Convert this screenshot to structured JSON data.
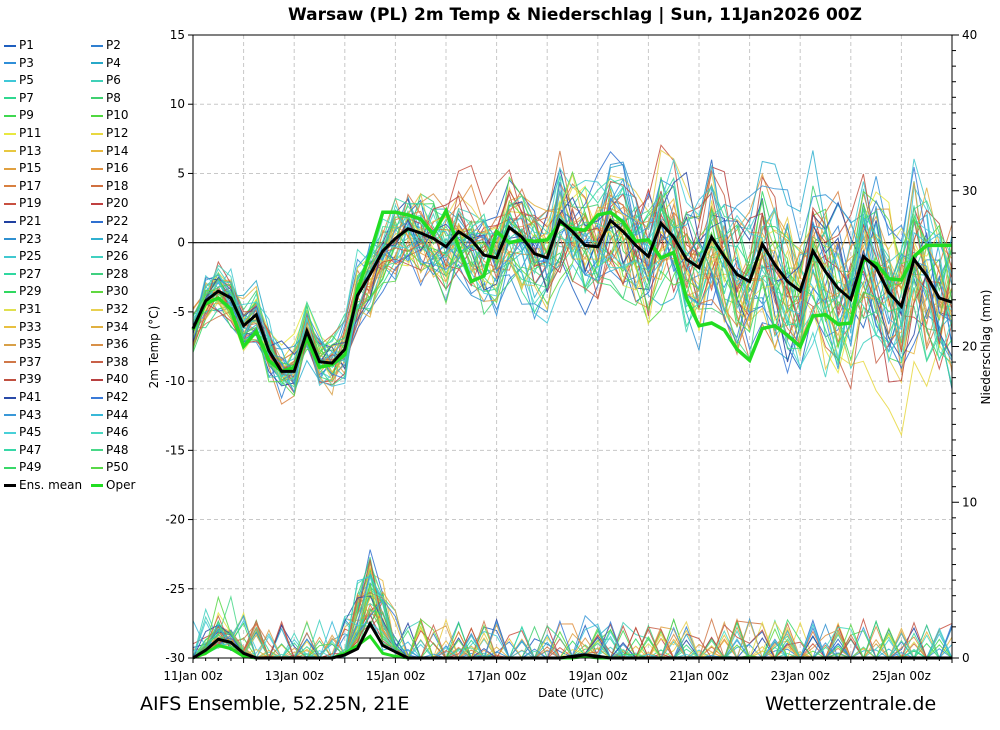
{
  "chart_data": {
    "type": "line",
    "title": "Warsaw  (PL)  2m Temp & Niederschlag | Sun, 11Jan2026 00Z",
    "xlabel": "Date (UTC)",
    "ylabel": "2m Temp (°C)",
    "y2label": "Niederschlag (mm)",
    "ylim": [
      -30,
      15
    ],
    "y2lim": [
      0,
      40
    ],
    "yticks": [
      15,
      10,
      5,
      0,
      -5,
      -10,
      -15,
      -20,
      -25,
      -30
    ],
    "y2ticks": [
      40,
      30,
      20,
      10,
      0
    ],
    "xticks": [
      "11Jan 00z",
      "13Jan 00z",
      "15Jan 00z",
      "17Jan 00z",
      "19Jan 00z",
      "21Jan 00z",
      "23Jan 00z",
      "25Jan 00z"
    ],
    "x_range_hours": [
      0,
      360
    ],
    "step_hours": 6,
    "grid": true,
    "legend_position": "left",
    "legend": [
      "P1",
      "P2",
      "P3",
      "P4",
      "P5",
      "P6",
      "P7",
      "P8",
      "P9",
      "P10",
      "P11",
      "P12",
      "P13",
      "P14",
      "P15",
      "P16",
      "P17",
      "P18",
      "P19",
      "P20",
      "P21",
      "P22",
      "P23",
      "P24",
      "P25",
      "P26",
      "P27",
      "P28",
      "P29",
      "P30",
      "P31",
      "P32",
      "P33",
      "P34",
      "P35",
      "P36",
      "P37",
      "P38",
      "P39",
      "P40",
      "P41",
      "P42",
      "P43",
      "P44",
      "P45",
      "P46",
      "P47",
      "P48",
      "P49",
      "P50",
      "Ens. mean",
      "Oper"
    ],
    "legend_colors": [
      "#1f5fbf",
      "#2f7fd0",
      "#2f8fd8",
      "#27a8c8",
      "#3fc8d8",
      "#3fd0b8",
      "#2fd890",
      "#3fd070",
      "#3fd850",
      "#50d840",
      "#e8e840",
      "#e8d840",
      "#e8c840",
      "#e8b840",
      "#e0a040",
      "#e09040",
      "#d88040",
      "#d07040",
      "#c85040",
      "#c04040",
      "#2040a0",
      "#2f70d0",
      "#2f90d0",
      "#30b0d0",
      "#40c8d0",
      "#40d0c0",
      "#30d8a0",
      "#40d080",
      "#30d860",
      "#60d840",
      "#e0e050",
      "#e8d050",
      "#e8c040",
      "#e0b040",
      "#d8a048",
      "#d89048",
      "#d07848",
      "#c86048",
      "#c05040",
      "#b84040",
      "#2a4aa8",
      "#3a7ad8",
      "#3a98d8",
      "#38b8d8",
      "#48d0d8",
      "#48d8c0",
      "#38d8a8",
      "#48d888",
      "#38d868",
      "#58d848",
      "#000000",
      "#22dd22"
    ],
    "ens_mean": [
      -6.2,
      -4.2,
      -3.5,
      -4.0,
      -6.0,
      -5.2,
      -7.8,
      -9.3,
      -9.3,
      -6.4,
      -8.6,
      -8.7,
      -7.7,
      -3.8,
      -2.3,
      -0.6,
      0.3,
      1.0,
      0.7,
      0.3,
      -0.3,
      0.8,
      0.2,
      -0.9,
      -1.1,
      1.1,
      0.4,
      -0.8,
      -1.1,
      1.6,
      0.8,
      -0.2,
      -0.3,
      1.6,
      0.8,
      -0.2,
      -1.0,
      1.4,
      0.4,
      -1.2,
      -1.8,
      0.4,
      -1.0,
      -2.3,
      -2.8,
      -0.1,
      -1.6,
      -2.8,
      -3.5,
      -0.6,
      -2.1,
      -3.3,
      -4.1,
      -1.0,
      -1.8,
      -3.6,
      -4.6,
      -1.2,
      -2.4,
      -4.0,
      -4.3
    ],
    "oper": [
      -6.3,
      -4.4,
      -4.0,
      -4.8,
      -7.5,
      -6.4,
      -8.5,
      -9.3,
      -9.0,
      -6.9,
      -9.0,
      -8.8,
      -8.1,
      -3.4,
      -0.8,
      2.2,
      2.2,
      2.0,
      1.7,
      0.6,
      2.3,
      -0.3,
      -2.8,
      -2.4,
      0.8,
      0.0,
      0.2,
      0.1,
      0.2,
      1.4,
      1.0,
      0.9,
      2.0,
      2.2,
      1.5,
      0.1,
      0.2,
      -1.1,
      -0.7,
      -4.0,
      -6.0,
      -5.8,
      -6.3,
      -7.7,
      -8.5,
      -6.2,
      -6.0,
      -6.7,
      -7.5,
      -5.3,
      -5.2,
      -5.9,
      -5.8,
      -1.2,
      -1.5,
      -2.6,
      -2.7,
      -1.0,
      -0.2,
      -0.2,
      -0.2
    ],
    "ens_mean_precip": [
      0,
      0.5,
      1.2,
      1.0,
      0.3,
      0,
      0,
      0,
      0,
      0,
      0,
      0,
      0.2,
      0.6,
      2.2,
      0.8,
      0.4,
      0,
      0,
      0,
      0,
      0,
      0,
      0,
      0,
      0,
      0,
      0,
      0,
      0,
      0.1,
      0.2,
      0.1,
      0,
      0,
      0,
      0,
      0,
      0,
      0,
      0,
      0,
      0,
      0,
      0,
      0,
      0,
      0,
      0,
      0,
      0,
      0,
      0,
      0,
      0,
      0,
      0,
      0,
      0,
      0,
      0
    ],
    "oper_precip": [
      0,
      0.3,
      0.8,
      0.6,
      0.1,
      0,
      0,
      0,
      0,
      0,
      0,
      0,
      0.3,
      0.8,
      1.4,
      0.3,
      0.1,
      0,
      0,
      0,
      0,
      0,
      0,
      0,
      0,
      0,
      0,
      0,
      0,
      0,
      0,
      0.1,
      0,
      0,
      0,
      0,
      0,
      0,
      0,
      0,
      0,
      0,
      0,
      0,
      0,
      0,
      0,
      0,
      0,
      0,
      0,
      0,
      0,
      0,
      0,
      0,
      0,
      0,
      0,
      0,
      0
    ]
  },
  "footer": {
    "left": "AIFS Ensemble, 52.25N, 21E",
    "right": "Wetterzentrale.de"
  }
}
